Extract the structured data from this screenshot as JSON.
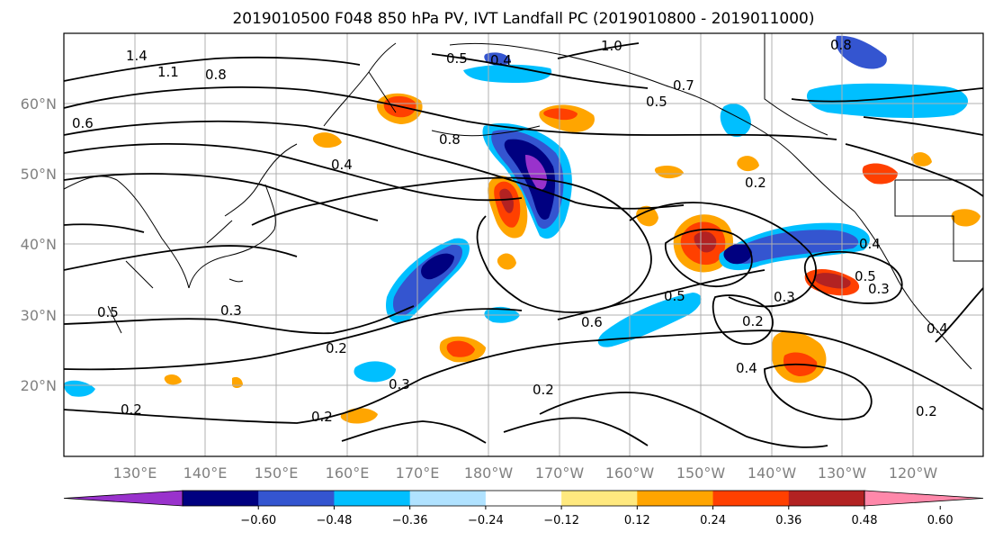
{
  "title": "2019010500 F048 850 hPa PV, IVT Landfall PC (2019010800 - 2019011000)",
  "map": {
    "lon_labels": [
      "130°E",
      "140°E",
      "150°E",
      "160°E",
      "170°E",
      "180°W",
      "170°W",
      "160°W",
      "150°W",
      "140°W",
      "130°W",
      "120°W"
    ],
    "lat_labels": [
      "20°N",
      "30°N",
      "40°N",
      "50°N",
      "60°N"
    ],
    "extent": {
      "lon_min": 120,
      "lon_max": 250,
      "lat_min": 10,
      "lat_max": 70
    },
    "gridlines": true,
    "contour_labels": [
      "1.4",
      "1.1",
      "0.8",
      "1.0",
      "0.4",
      "0.8",
      "0.5",
      "0.7",
      "0.5",
      "0.8",
      "0.6",
      "0.4",
      "0.2",
      "0.4",
      "0.5",
      "0.3",
      "0.3",
      "0.6",
      "0.5",
      "0.3",
      "0.2",
      "0.2",
      "0.4",
      "0.4",
      "0.2",
      "0.3",
      "0.2",
      "0.2",
      "0.5",
      "0.2"
    ]
  },
  "colorbar": {
    "ticks": [
      "−0.60",
      "−0.48",
      "−0.36",
      "−0.24",
      "−0.12",
      "0.12",
      "0.24",
      "0.36",
      "0.48",
      "0.60"
    ],
    "colors": [
      "#9932cc",
      "#000080",
      "#3455d0",
      "#00bfff",
      "#b0e2ff",
      "#ffffff",
      "#ffe97f",
      "#ffa500",
      "#ff4000",
      "#b22222",
      "#ff88aa"
    ],
    "extend": "both"
  }
}
